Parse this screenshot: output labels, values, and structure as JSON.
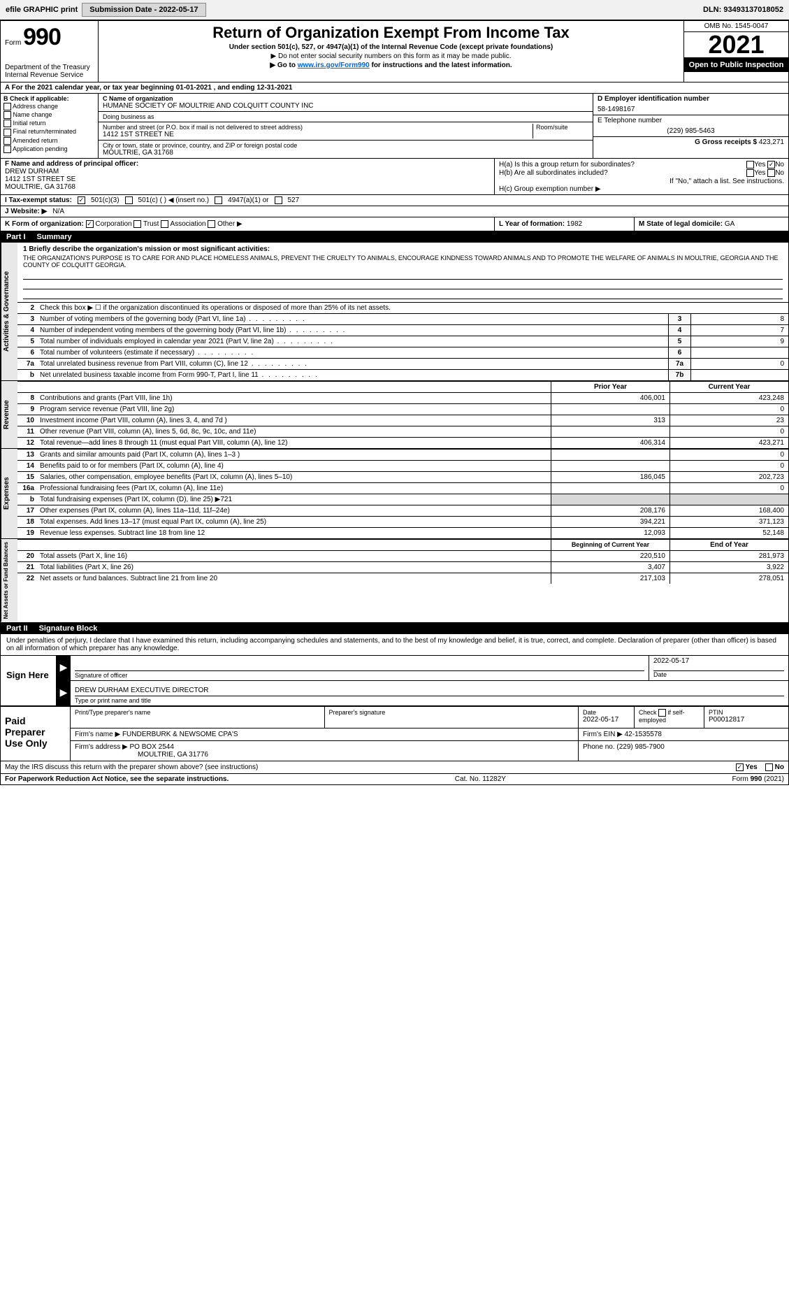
{
  "topbar": {
    "efile_label": "efile GRAPHIC print",
    "submission_label": "Submission Date - 2022-05-17",
    "dln_label": "DLN: 93493137018052"
  },
  "header": {
    "form_prefix": "Form",
    "form_number": "990",
    "dept": "Department of the Treasury",
    "irs": "Internal Revenue Service",
    "title": "Return of Organization Exempt From Income Tax",
    "subtitle": "Under section 501(c), 527, or 4947(a)(1) of the Internal Revenue Code (except private foundations)",
    "note1": "▶ Do not enter social security numbers on this form as it may be made public.",
    "note2_pre": "▶ Go to ",
    "note2_link": "www.irs.gov/Form990",
    "note2_post": " for instructions and the latest information.",
    "omb": "OMB No. 1545-0047",
    "year": "2021",
    "open_public": "Open to Public Inspection"
  },
  "row_a": "A For the 2021 calendar year, or tax year beginning 01-01-2021    , and ending 12-31-2021",
  "col_b": {
    "label": "B Check if applicable:",
    "items": [
      "Address change",
      "Name change",
      "Initial return",
      "Final return/terminated",
      "Amended return",
      "Application pending"
    ]
  },
  "col_c": {
    "name_label": "C Name of organization",
    "name": "HUMANE SOCIETY OF MOULTRIE AND COLQUITT COUNTY INC",
    "dba_label": "Doing business as",
    "dba": "",
    "street_label": "Number and street (or P.O. box if mail is not delivered to street address)",
    "room_label": "Room/suite",
    "street": "1412 1ST STREET NE",
    "city_label": "City or town, state or province, country, and ZIP or foreign postal code",
    "city": "MOULTRIE, GA  31768"
  },
  "col_de": {
    "d_label": "D Employer identification number",
    "d_value": "58-1498167",
    "e_label": "E Telephone number",
    "e_value": "(229) 985-5463",
    "g_label": "G Gross receipts $",
    "g_value": "423,271"
  },
  "row_f": {
    "label": "F  Name and address of principal officer:",
    "name": "DREW DURHAM",
    "street": "1412 1ST STREET SE",
    "city": "MOULTRIE, GA  31768"
  },
  "row_h": {
    "ha_label": "H(a)  Is this a group return for subordinates?",
    "ha_yes": "Yes",
    "ha_no_checked": "No",
    "hb_label": "H(b)  Are all subordinates included?",
    "hb_yes": "Yes",
    "hb_no": "No",
    "hb_note": "If \"No,\" attach a list. See instructions.",
    "hc_label": "H(c)  Group exemption number ▶"
  },
  "row_i": {
    "label": "I    Tax-exempt status:",
    "opt1": "501(c)(3)",
    "opt2": "501(c) (  ) ◀ (insert no.)",
    "opt3": "4947(a)(1) or",
    "opt4": "527"
  },
  "row_j": {
    "label": "J    Website: ▶",
    "value": "N/A"
  },
  "row_k": {
    "label": "K Form of organization:",
    "opts": [
      "Corporation",
      "Trust",
      "Association",
      "Other ▶"
    ]
  },
  "row_l": {
    "label": "L Year of formation:",
    "value": "1982"
  },
  "row_m": {
    "label": "M State of legal domicile:",
    "value": "GA"
  },
  "part1": {
    "num": "Part I",
    "title": "Summary"
  },
  "mission": {
    "label": "1  Briefly describe the organization's mission or most significant activities:",
    "text": "THE ORGANIZATION'S PURPOSE IS TO CARE FOR AND PLACE HOMELESS ANIMALS, PREVENT THE CRUELTY TO ANIMALS, ENCOURAGE KINDNESS TOWARD ANIMALS AND TO PROMOTE THE WELFARE OF ANIMALS IN MOULTRIE, GEORGIA AND THE COUNTY OF COLQUITT GEORGIA."
  },
  "governance_rows": [
    {
      "n": "2",
      "desc": "Check this box ▶ ☐  if the organization discontinued its operations or disposed of more than 25% of its net assets.",
      "box": "",
      "val": ""
    },
    {
      "n": "3",
      "desc": "Number of voting members of the governing body (Part VI, line 1a)",
      "box": "3",
      "val": "8"
    },
    {
      "n": "4",
      "desc": "Number of independent voting members of the governing body (Part VI, line 1b)",
      "box": "4",
      "val": "7"
    },
    {
      "n": "5",
      "desc": "Total number of individuals employed in calendar year 2021 (Part V, line 2a)",
      "box": "5",
      "val": "9"
    },
    {
      "n": "6",
      "desc": "Total number of volunteers (estimate if necessary)",
      "box": "6",
      "val": ""
    },
    {
      "n": "7a",
      "desc": "Total unrelated business revenue from Part VIII, column (C), line 12",
      "box": "7a",
      "val": "0"
    },
    {
      "n": "b",
      "desc": "Net unrelated business taxable income from Form 990-T, Part I, line 11",
      "box": "7b",
      "val": ""
    }
  ],
  "two_col": {
    "prior": "Prior Year",
    "current": "Current Year"
  },
  "revenue_rows": [
    {
      "n": "8",
      "desc": "Contributions and grants (Part VIII, line 1h)",
      "prior": "406,001",
      "current": "423,248"
    },
    {
      "n": "9",
      "desc": "Program service revenue (Part VIII, line 2g)",
      "prior": "",
      "current": "0"
    },
    {
      "n": "10",
      "desc": "Investment income (Part VIII, column (A), lines 3, 4, and 7d )",
      "prior": "313",
      "current": "23"
    },
    {
      "n": "11",
      "desc": "Other revenue (Part VIII, column (A), lines 5, 6d, 8c, 9c, 10c, and 11e)",
      "prior": "",
      "current": "0"
    },
    {
      "n": "12",
      "desc": "Total revenue—add lines 8 through 11 (must equal Part VIII, column (A), line 12)",
      "prior": "406,314",
      "current": "423,271"
    }
  ],
  "expense_rows": [
    {
      "n": "13",
      "desc": "Grants and similar amounts paid (Part IX, column (A), lines 1–3 )",
      "prior": "",
      "current": "0"
    },
    {
      "n": "14",
      "desc": "Benefits paid to or for members (Part IX, column (A), line 4)",
      "prior": "",
      "current": "0"
    },
    {
      "n": "15",
      "desc": "Salaries, other compensation, employee benefits (Part IX, column (A), lines 5–10)",
      "prior": "186,045",
      "current": "202,723"
    },
    {
      "n": "16a",
      "desc": "Professional fundraising fees (Part IX, column (A), line 11e)",
      "prior": "",
      "current": "0"
    },
    {
      "n": "b",
      "desc": "Total fundraising expenses (Part IX, column (D), line 25) ▶721",
      "prior": "shade",
      "current": "shade"
    },
    {
      "n": "17",
      "desc": "Other expenses (Part IX, column (A), lines 11a–11d, 11f–24e)",
      "prior": "208,176",
      "current": "168,400"
    },
    {
      "n": "18",
      "desc": "Total expenses. Add lines 13–17 (must equal Part IX, column (A), line 25)",
      "prior": "394,221",
      "current": "371,123"
    },
    {
      "n": "19",
      "desc": "Revenue less expenses. Subtract line 18 from line 12",
      "prior": "12,093",
      "current": "52,148"
    }
  ],
  "net_header": {
    "prior": "Beginning of Current Year",
    "current": "End of Year"
  },
  "net_rows": [
    {
      "n": "20",
      "desc": "Total assets (Part X, line 16)",
      "prior": "220,510",
      "current": "281,973"
    },
    {
      "n": "21",
      "desc": "Total liabilities (Part X, line 26)",
      "prior": "3,407",
      "current": "3,922"
    },
    {
      "n": "22",
      "desc": "Net assets or fund balances. Subtract line 21 from line 20",
      "prior": "217,103",
      "current": "278,051"
    }
  ],
  "side_labels": {
    "gov": "Activities & Governance",
    "rev": "Revenue",
    "exp": "Expenses",
    "net": "Net Assets or Fund Balances"
  },
  "part2": {
    "num": "Part II",
    "title": "Signature Block"
  },
  "sig_text": "Under penalties of perjury, I declare that I have examined this return, including accompanying schedules and statements, and to the best of my knowledge and belief, it is true, correct, and complete. Declaration of preparer (other than officer) is based on all information of which preparer has any knowledge.",
  "sign_here": "Sign Here",
  "sig": {
    "date": "2022-05-17",
    "sig_of_officer": "Signature of officer",
    "date_label": "Date",
    "name": "DREW DURHAM  EXECUTIVE DIRECTOR",
    "name_label": "Type or print name and title"
  },
  "paid_label": "Paid Preparer Use Only",
  "paid": {
    "h1": "Print/Type preparer's name",
    "h2": "Preparer's signature",
    "h3": "Date",
    "date": "2022-05-17",
    "h4_pre": "Check",
    "h4_post": "if self-employed",
    "h5": "PTIN",
    "ptin": "P00012817",
    "firm_name_label": "Firm's name    ▶",
    "firm_name": "FUNDERBURK & NEWSOME CPA'S",
    "firm_ein_label": "Firm's EIN ▶",
    "firm_ein": "42-1535578",
    "firm_addr_label": "Firm's address ▶",
    "firm_addr1": "PO BOX 2544",
    "firm_addr2": "MOULTRIE, GA  31776",
    "firm_phone_label": "Phone no.",
    "firm_phone": "(229) 985-7900"
  },
  "discuss": {
    "text": "May the IRS discuss this return with the preparer shown above? (see instructions)",
    "yes": "Yes",
    "no": "No"
  },
  "footer": {
    "left": "For Paperwork Reduction Act Notice, see the separate instructions.",
    "mid": "Cat. No. 11282Y",
    "right_pre": "Form ",
    "right_bold": "990",
    "right_post": " (2021)"
  }
}
